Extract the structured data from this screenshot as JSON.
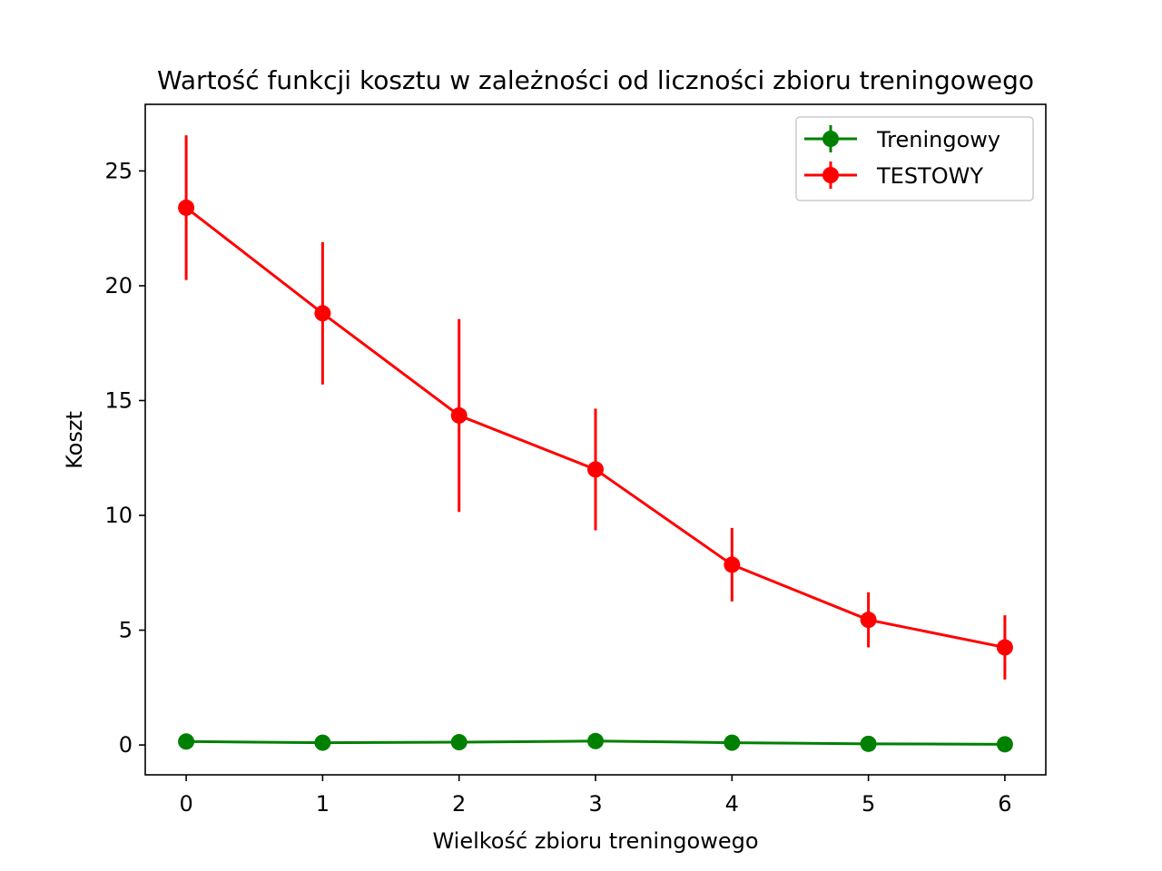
{
  "chart_data": {
    "type": "line",
    "title": "Wartość funkcji kosztu w zależności od liczności zbioru treningowego",
    "xlabel": "Wielkość zbioru treningowego",
    "ylabel": "Koszt",
    "x": [
      0,
      1,
      2,
      3,
      4,
      5,
      6
    ],
    "xlim": [
      -0.3,
      6.3
    ],
    "ylim": [
      -1.3,
      27.9
    ],
    "xticks": [
      0,
      1,
      2,
      3,
      4,
      5,
      6
    ],
    "yticks": [
      0,
      5,
      10,
      15,
      20,
      25
    ],
    "grid": false,
    "legend_position": "top-right",
    "series": [
      {
        "name": "Treningowy",
        "color": "#008000",
        "values": [
          0.15,
          0.1,
          0.12,
          0.17,
          0.1,
          0.05,
          0.03
        ],
        "errors": [
          0.05,
          0.05,
          0.05,
          0.05,
          0.05,
          0.05,
          0.05
        ]
      },
      {
        "name": "TESTOWY",
        "color": "#ff0000",
        "values": [
          23.4,
          18.8,
          14.35,
          12.0,
          7.85,
          5.45,
          4.25
        ],
        "errors": [
          3.15,
          3.1,
          4.2,
          2.65,
          1.6,
          1.2,
          1.4
        ]
      }
    ]
  }
}
